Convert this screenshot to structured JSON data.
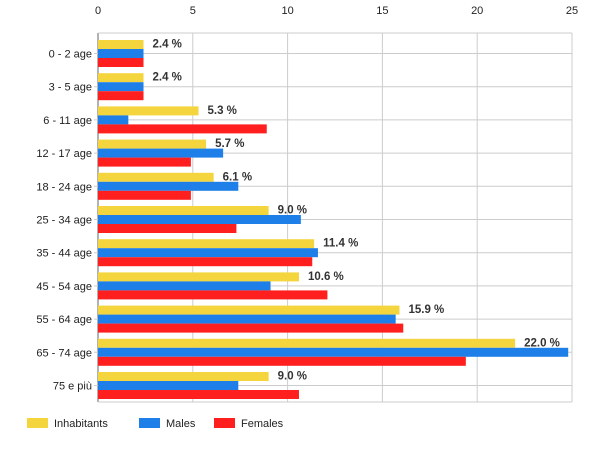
{
  "chart_data": {
    "type": "bar",
    "orientation": "horizontal",
    "categories": [
      "0 - 2 age",
      "3 - 5 age",
      "6 - 11 age",
      "12 - 17 age",
      "18 - 24 age",
      "25 - 34 age",
      "35 - 44 age",
      "45 - 54 age",
      "55 - 64 age",
      "65 - 74 age",
      "75 e più"
    ],
    "series": [
      {
        "name": "Inhabitants",
        "color": "#f4d53d",
        "values": [
          2.4,
          2.4,
          5.3,
          5.7,
          6.1,
          9.0,
          11.4,
          10.6,
          15.9,
          22.0,
          9.0
        ]
      },
      {
        "name": "Males",
        "color": "#1f7fe8",
        "values": [
          2.4,
          2.4,
          1.6,
          6.6,
          7.4,
          10.7,
          11.6,
          9.1,
          15.7,
          24.8,
          7.4
        ]
      },
      {
        "name": "Females",
        "color": "#ff1f1f",
        "values": [
          2.4,
          2.4,
          8.9,
          4.9,
          4.9,
          7.3,
          11.3,
          12.1,
          16.1,
          19.4,
          10.6
        ]
      }
    ],
    "data_labels": [
      "2.4 %",
      "2.4 %",
      "5.3 %",
      "5.7 %",
      "6.1 %",
      "9.0 %",
      "11.4 %",
      "10.6 %",
      "15.9 %",
      "22.0 %",
      "9.0 %"
    ],
    "xlim": [
      0,
      25
    ],
    "xticks": [
      0,
      5,
      10,
      15,
      20,
      25
    ],
    "x_axis_position": "top",
    "grid": true,
    "legend_position": "bottom-left",
    "title": "",
    "xlabel": "",
    "ylabel": ""
  }
}
